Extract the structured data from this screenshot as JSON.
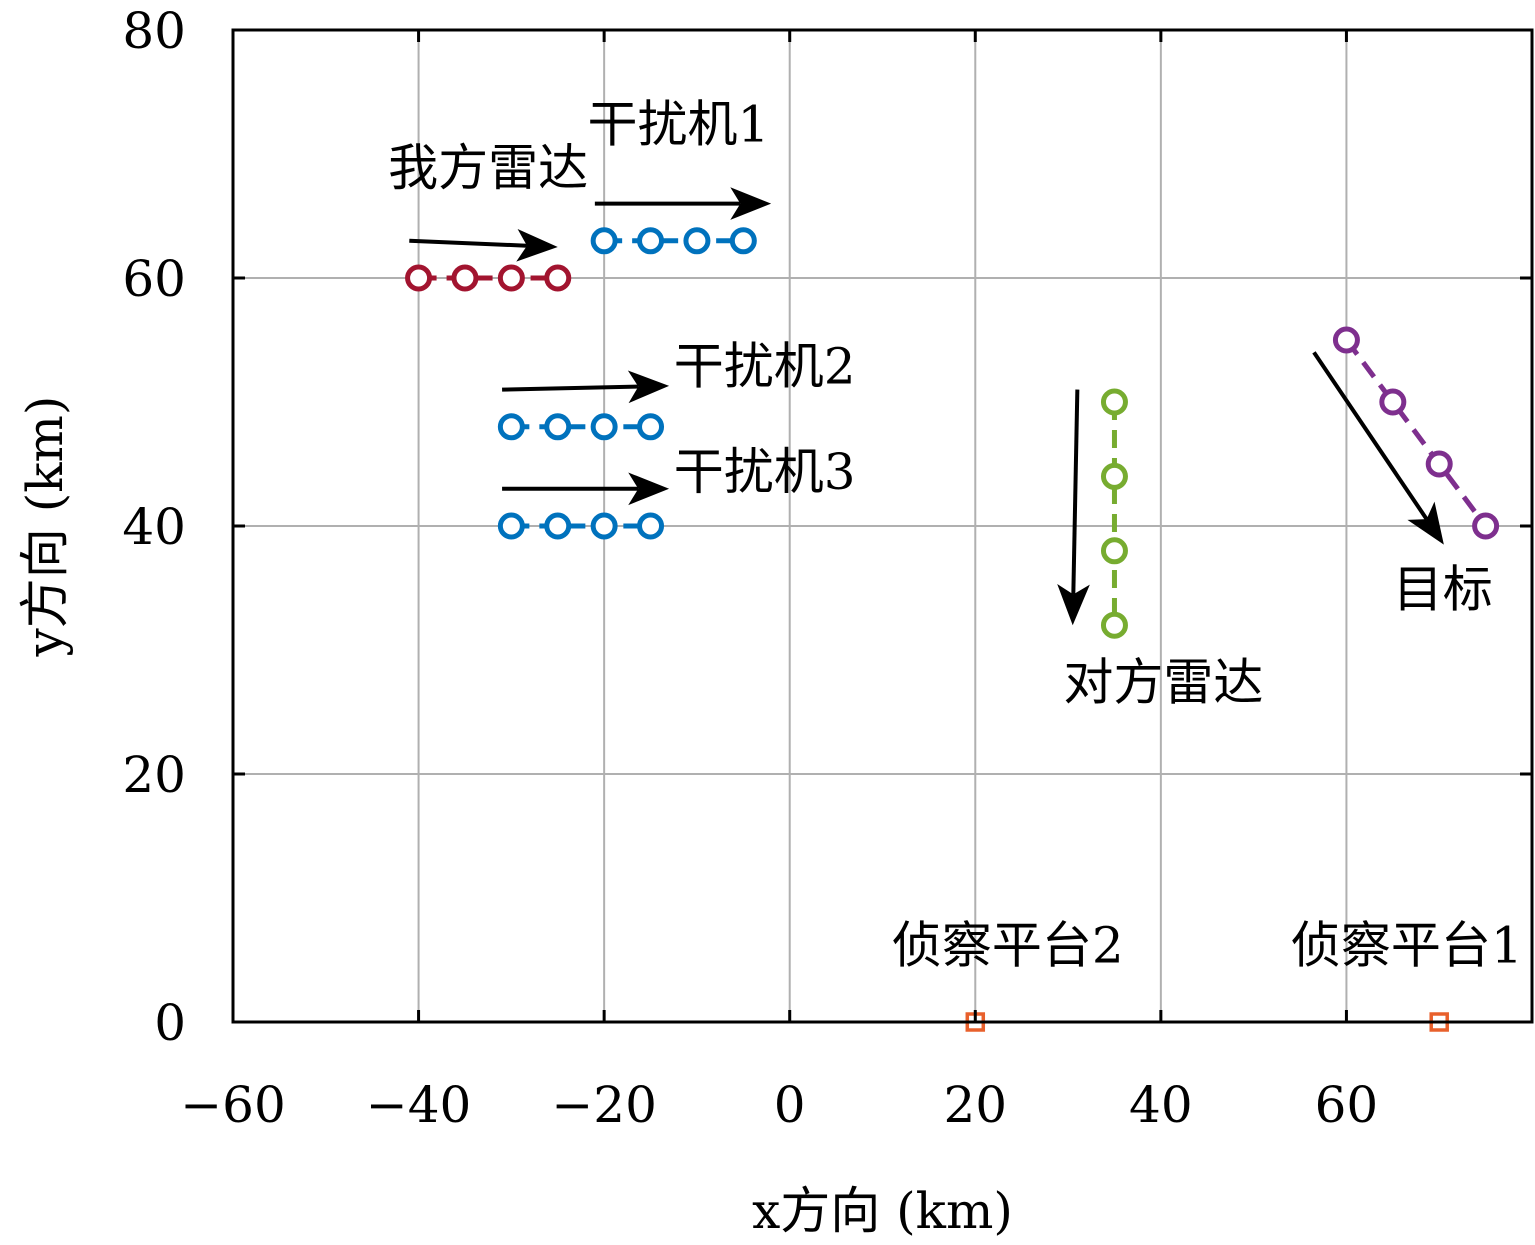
{
  "chart_data": {
    "type": "scatter",
    "title": "",
    "xlabel": "x方向 (km)",
    "ylabel": "y方向 (km)",
    "xlim": [
      -60,
      80
    ],
    "ylim": [
      0,
      80
    ],
    "xticks": [
      -60,
      -40,
      -20,
      0,
      20,
      40,
      60
    ],
    "yticks": [
      0,
      20,
      40,
      60,
      80
    ],
    "grid": true,
    "legend": "none",
    "series": [
      {
        "color": "#a2142f",
        "marker": "circle",
        "line": "dashed",
        "points": [
          [
            -40,
            60
          ],
          [
            -35,
            60
          ],
          [
            -30,
            60
          ],
          [
            -25,
            60
          ]
        ]
      },
      {
        "color": "#0072bd",
        "marker": "circle",
        "line": "dashed",
        "points": [
          [
            -20,
            63
          ],
          [
            -15,
            63
          ],
          [
            -10,
            63
          ],
          [
            -5,
            63
          ]
        ]
      },
      {
        "color": "#0072bd",
        "marker": "circle",
        "line": "dashed",
        "points": [
          [
            -30,
            48
          ],
          [
            -25,
            48
          ],
          [
            -20,
            48
          ],
          [
            -15,
            48
          ]
        ]
      },
      {
        "color": "#0072bd",
        "marker": "circle",
        "line": "dashed",
        "points": [
          [
            -30,
            40
          ],
          [
            -25,
            40
          ],
          [
            -20,
            40
          ],
          [
            -15,
            40
          ]
        ]
      },
      {
        "color": "#77ac30",
        "marker": "circle",
        "line": "dashed",
        "points": [
          [
            35,
            50
          ],
          [
            35,
            44
          ],
          [
            35,
            38
          ],
          [
            35,
            32
          ]
        ]
      },
      {
        "color": "#7e2f8e",
        "marker": "circle",
        "line": "dashed",
        "points": [
          [
            60,
            55
          ],
          [
            65,
            50
          ],
          [
            70,
            45
          ],
          [
            75,
            40
          ]
        ]
      },
      {
        "color": "#e8602c",
        "marker": "square",
        "line": "none",
        "points": [
          [
            20,
            0
          ],
          [
            70,
            0
          ]
        ]
      }
    ],
    "arrows": [
      {
        "from": [
          -41,
          63
        ],
        "to": [
          -25,
          62.5
        ]
      },
      {
        "from": [
          -21,
          66
        ],
        "to": [
          -2,
          66
        ]
      },
      {
        "from": [
          -31,
          51
        ],
        "to": [
          -13,
          51.3
        ]
      },
      {
        "from": [
          -31,
          43
        ],
        "to": [
          -13,
          43
        ]
      },
      {
        "from": [
          31,
          51
        ],
        "to": [
          30.5,
          32
        ]
      },
      {
        "from": [
          56.5,
          54
        ],
        "to": [
          70.5,
          38.5
        ]
      }
    ],
    "annotations": [
      {
        "text": "我方雷达",
        "x": -32.5,
        "y": 67.5,
        "anchor": "middle"
      },
      {
        "text": "干扰机1",
        "x": -12,
        "y": 71,
        "anchor": "middle"
      },
      {
        "text": "干扰机2",
        "x": -12.5,
        "y": 51.5,
        "anchor": "start"
      },
      {
        "text": "干扰机3",
        "x": -12.5,
        "y": 43,
        "anchor": "start"
      },
      {
        "text": "对方雷达",
        "x": 29.5,
        "y": 26,
        "anchor": "start"
      },
      {
        "text": "目标",
        "x": 65,
        "y": 33.5,
        "anchor": "start"
      },
      {
        "text": "侦察平台2",
        "x": 23.5,
        "y": 4.8,
        "anchor": "middle"
      },
      {
        "text": "侦察平台1",
        "x": 66.5,
        "y": 4.8,
        "anchor": "middle"
      }
    ]
  }
}
